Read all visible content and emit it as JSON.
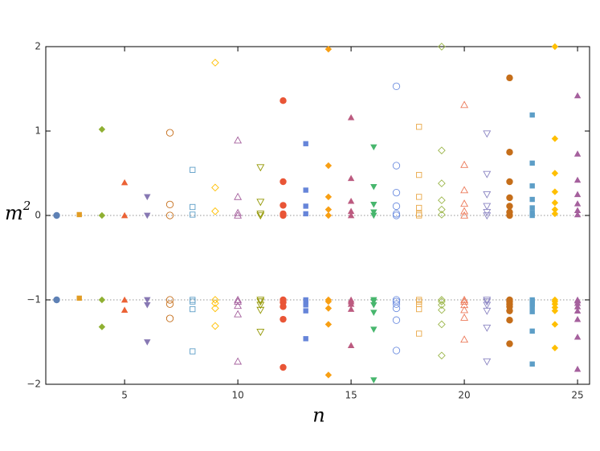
{
  "chart_data": {
    "type": "scatter",
    "x_label": "n",
    "y_label": {
      "base": "m",
      "superscript": "2"
    },
    "xlim": [
      1.52,
      25.53
    ],
    "ylim": [
      -2,
      2
    ],
    "xticks": [
      5,
      10,
      15,
      20,
      25
    ],
    "yticks": [
      {
        "value": -2,
        "label": "−2"
      },
      {
        "value": -1,
        "label": "−1"
      },
      0,
      1,
      2
    ],
    "reference_lines": [
      0,
      -1
    ],
    "series": [
      {
        "color": "#5e81b5",
        "marker": "circle",
        "filled": true,
        "x": [
          2,
          2
        ],
        "y": [
          0,
          -1
        ]
      },
      {
        "color": "#e19c24",
        "marker": "square",
        "filled": true,
        "x": [
          3,
          3
        ],
        "y": [
          0.01,
          -0.98
        ]
      },
      {
        "color": "#8fb032",
        "marker": "diamond",
        "filled": true,
        "x": [
          4,
          4,
          4,
          4
        ],
        "y": [
          1.02,
          0,
          -1,
          -1.32
        ]
      },
      {
        "color": "#eb6235",
        "marker": "triangle-up",
        "filled": true,
        "x": [
          5,
          5,
          5,
          5
        ],
        "y": [
          0.39,
          0,
          -1,
          -1.12
        ]
      },
      {
        "color": "#8778b3",
        "marker": "triangle-down",
        "filled": true,
        "x": [
          6,
          6,
          6,
          6,
          6
        ],
        "y": [
          0.22,
          0,
          -1,
          -1.06,
          -1.5
        ]
      },
      {
        "color": "#c56e1a",
        "marker": "circle",
        "filled": false,
        "x": [
          7,
          7,
          7,
          7,
          7,
          7
        ],
        "y": [
          0.98,
          0.13,
          0,
          -1,
          -1.05,
          -1.22
        ]
      },
      {
        "color": "#5d9ec7",
        "marker": "square",
        "filled": false,
        "x": [
          8,
          8,
          8,
          8,
          8,
          8,
          8
        ],
        "y": [
          0.54,
          0.1,
          0.01,
          -1,
          -1.02,
          -1.11,
          -1.61
        ]
      },
      {
        "color": "#ffbf00",
        "marker": "diamond",
        "filled": false,
        "x": [
          9,
          9,
          9,
          9,
          9,
          9,
          9
        ],
        "y": [
          1.81,
          0.33,
          0.05,
          -1,
          -1.04,
          -1.1,
          -1.31
        ]
      },
      {
        "color": "#a5609d",
        "marker": "triangle-up",
        "filled": false,
        "x": [
          10,
          10,
          10,
          10,
          10,
          10,
          10,
          10,
          10
        ],
        "y": [
          0.89,
          0.22,
          0.03,
          0,
          -1,
          -1.02,
          -1.07,
          -1.17,
          -1.73
        ]
      },
      {
        "color": "#929600",
        "marker": "triangle-down",
        "filled": false,
        "x": [
          11,
          11,
          11,
          11,
          11,
          11,
          11,
          11,
          11
        ],
        "y": [
          0.57,
          0.16,
          0.02,
          0,
          -1,
          -1.02,
          -1.06,
          -1.12,
          -1.38
        ]
      },
      {
        "color": "#e95536",
        "marker": "circle",
        "filled": true,
        "x": [
          12,
          12,
          12,
          12,
          12,
          12,
          12,
          12,
          12,
          12
        ],
        "y": [
          1.36,
          0.4,
          0.12,
          0.02,
          0,
          -1,
          -1.03,
          -1.08,
          -1.23,
          -1.8
        ]
      },
      {
        "color": "#6685d9",
        "marker": "square",
        "filled": true,
        "x": [
          13,
          13,
          13,
          13,
          13,
          13,
          13,
          13,
          13
        ],
        "y": [
          0.85,
          0.3,
          0.11,
          0.02,
          -1,
          -1.02,
          -1.06,
          -1.13,
          -1.46
        ]
      },
      {
        "color": "#f89f13",
        "marker": "diamond",
        "filled": true,
        "x": [
          14,
          14,
          14,
          14,
          14,
          14,
          14,
          14,
          14,
          14
        ],
        "y": [
          1.97,
          0.59,
          0.22,
          0.07,
          0,
          -1,
          -1.02,
          -1.1,
          -1.29,
          -1.89
        ]
      },
      {
        "color": "#bc5b80",
        "marker": "triangle-up",
        "filled": true,
        "x": [
          15,
          15,
          15,
          15,
          15,
          15,
          15,
          15,
          15,
          15
        ],
        "y": [
          1.16,
          0.44,
          0.17,
          0.05,
          0,
          -1,
          -1.02,
          -1.05,
          -1.11,
          -1.54
        ]
      },
      {
        "color": "#47b66d",
        "marker": "triangle-down",
        "filled": true,
        "x": [
          16,
          16,
          16,
          16,
          16,
          16,
          16,
          16,
          16,
          16,
          16
        ],
        "y": [
          0.81,
          0.34,
          0.13,
          0.04,
          0,
          -1,
          -1.02,
          -1.06,
          -1.15,
          -1.35,
          -1.95
        ]
      },
      {
        "color": "#6f8fe0",
        "marker": "circle",
        "filled": false,
        "x": [
          17,
          17,
          17,
          17,
          17,
          17,
          17,
          17,
          17,
          17,
          17,
          17
        ],
        "y": [
          1.53,
          0.59,
          0.27,
          0.11,
          0.02,
          0,
          -1,
          -1.02,
          -1.05,
          -1.1,
          -1.24,
          -1.6
        ]
      },
      {
        "color": "#e9a94a",
        "marker": "square",
        "filled": false,
        "x": [
          18,
          18,
          18,
          18,
          18,
          18,
          18,
          18,
          18,
          18,
          18
        ],
        "y": [
          1.05,
          0.48,
          0.22,
          0.09,
          0.02,
          0,
          -1,
          -1.02,
          -1.05,
          -1.11,
          -1.4
        ]
      },
      {
        "color": "#9bb64a",
        "marker": "diamond",
        "filled": false,
        "x": [
          19,
          19,
          19,
          19,
          19,
          19,
          19,
          19,
          19,
          19,
          19,
          19
        ],
        "y": [
          2.0,
          0.77,
          0.38,
          0.18,
          0.07,
          0.01,
          -1,
          -1.02,
          -1.06,
          -1.12,
          -1.29,
          -1.66
        ]
      },
      {
        "color": "#ec7a5a",
        "marker": "triangle-up",
        "filled": false,
        "x": [
          20,
          20,
          20,
          20,
          20,
          20,
          20,
          20,
          20,
          20,
          20,
          20
        ],
        "y": [
          1.31,
          0.6,
          0.3,
          0.14,
          0.05,
          0,
          -1,
          -1.02,
          -1.06,
          -1.12,
          -1.21,
          -1.47
        ]
      },
      {
        "color": "#8a84c2",
        "marker": "triangle-down",
        "filled": false,
        "x": [
          21,
          21,
          21,
          21,
          21,
          21,
          21,
          21,
          21,
          21,
          21,
          21
        ],
        "y": [
          0.97,
          0.49,
          0.25,
          0.11,
          0.04,
          0,
          -1,
          -1.02,
          -1.06,
          -1.13,
          -1.33,
          -1.73
        ]
      },
      {
        "color": "#c56e1a",
        "marker": "circle",
        "filled": true,
        "x": [
          22,
          22,
          22,
          22,
          22,
          22,
          22,
          22,
          22,
          22,
          22,
          22,
          22,
          22
        ],
        "y": [
          1.63,
          0.75,
          0.4,
          0.21,
          0.11,
          0.04,
          0,
          -1,
          -1.02,
          -1.05,
          -1.08,
          -1.13,
          -1.24,
          -1.52
        ]
      },
      {
        "color": "#5d9ec7",
        "marker": "square",
        "filled": true,
        "x": [
          23,
          23,
          23,
          23,
          23,
          23,
          23,
          23,
          23,
          23,
          23,
          23,
          23,
          23
        ],
        "y": [
          1.19,
          0.62,
          0.35,
          0.19,
          0.09,
          0.03,
          0,
          -1,
          -1.02,
          -1.05,
          -1.08,
          -1.14,
          -1.37,
          -1.76
        ]
      },
      {
        "color": "#ffbf00",
        "marker": "diamond",
        "filled": true,
        "x": [
          24,
          24,
          24,
          24,
          24,
          24,
          24,
          24,
          24,
          24,
          24,
          24,
          24,
          24
        ],
        "y": [
          2.0,
          0.91,
          0.5,
          0.28,
          0.15,
          0.07,
          0.02,
          -1,
          -1.02,
          -1.05,
          -1.09,
          -1.13,
          -1.29,
          -1.57
        ]
      },
      {
        "color": "#a5609d",
        "marker": "triangle-up",
        "filled": true,
        "x": [
          25,
          25,
          25,
          25,
          25,
          25,
          25,
          25,
          25,
          25,
          25,
          25,
          25,
          25,
          25
        ],
        "y": [
          1.42,
          0.73,
          0.42,
          0.25,
          0.14,
          0.06,
          0.01,
          -1,
          -1.01,
          -1.04,
          -1.08,
          -1.13,
          -1.23,
          -1.44,
          -1.82
        ]
      }
    ]
  }
}
